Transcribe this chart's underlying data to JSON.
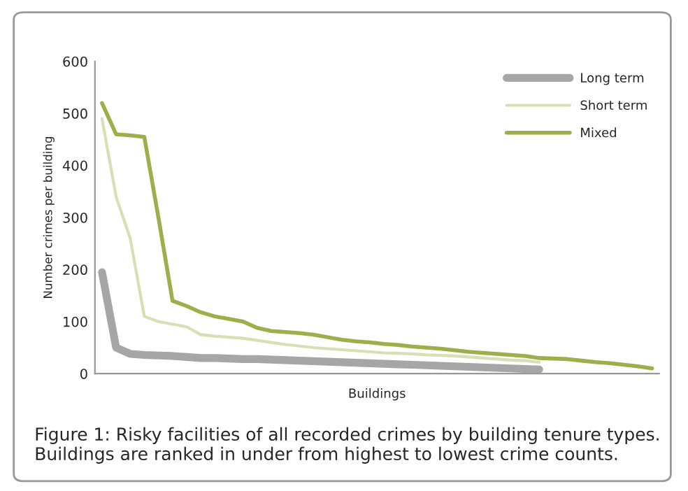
{
  "chart_data": {
    "type": "line",
    "xlabel": "Buildings",
    "ylabel": "Number crimes per building",
    "categories": [
      null,
      null,
      null,
      null,
      null,
      null,
      null,
      null,
      null,
      null,
      null,
      null,
      null,
      null,
      null,
      null,
      null,
      null,
      null,
      null,
      null,
      null,
      null,
      null,
      null,
      null,
      null,
      null,
      null,
      null,
      null,
      null,
      null,
      null,
      null,
      null,
      null,
      null,
      null,
      null
    ],
    "series": [
      {
        "name": "Long term",
        "color": "#a6a6a6",
        "values": [
          195,
          50,
          38,
          36,
          35,
          34,
          32,
          30,
          30,
          29,
          28,
          28,
          27,
          26,
          25,
          24,
          23,
          22,
          21,
          20,
          19,
          18,
          17,
          16,
          15,
          14,
          13,
          12,
          11,
          10,
          9,
          8,
          null,
          null,
          null,
          null,
          null,
          null,
          null,
          null
        ]
      },
      {
        "name": "Short term",
        "color": "#d7dfb5",
        "values": [
          490,
          340,
          260,
          110,
          100,
          95,
          90,
          75,
          72,
          70,
          68,
          64,
          60,
          56,
          53,
          50,
          48,
          46,
          44,
          42,
          40,
          39,
          38,
          36,
          35,
          34,
          32,
          30,
          28,
          26,
          25,
          22,
          null,
          null,
          null,
          null,
          null,
          null,
          null,
          null
        ]
      },
      {
        "name": "Mixed",
        "color": "#9bb04a",
        "values": [
          520,
          460,
          458,
          455,
          300,
          140,
          130,
          118,
          110,
          105,
          100,
          88,
          82,
          80,
          78,
          75,
          70,
          65,
          62,
          60,
          57,
          55,
          52,
          50,
          48,
          45,
          42,
          40,
          38,
          36,
          34,
          30,
          29,
          28,
          25,
          22,
          20,
          17,
          14,
          10
        ]
      }
    ],
    "ylim": [
      0,
      600
    ],
    "yticks": [
      0,
      100,
      200,
      300,
      400,
      500,
      600
    ],
    "grid": false,
    "legend": "top right",
    "marker": "none",
    "line_style": "solid",
    "annotations": [
      "Figure 1: Risky facilities of all recorded crimes by building tenure types. Buildings are ranked in under from highest to lowest crime counts."
    ]
  }
}
